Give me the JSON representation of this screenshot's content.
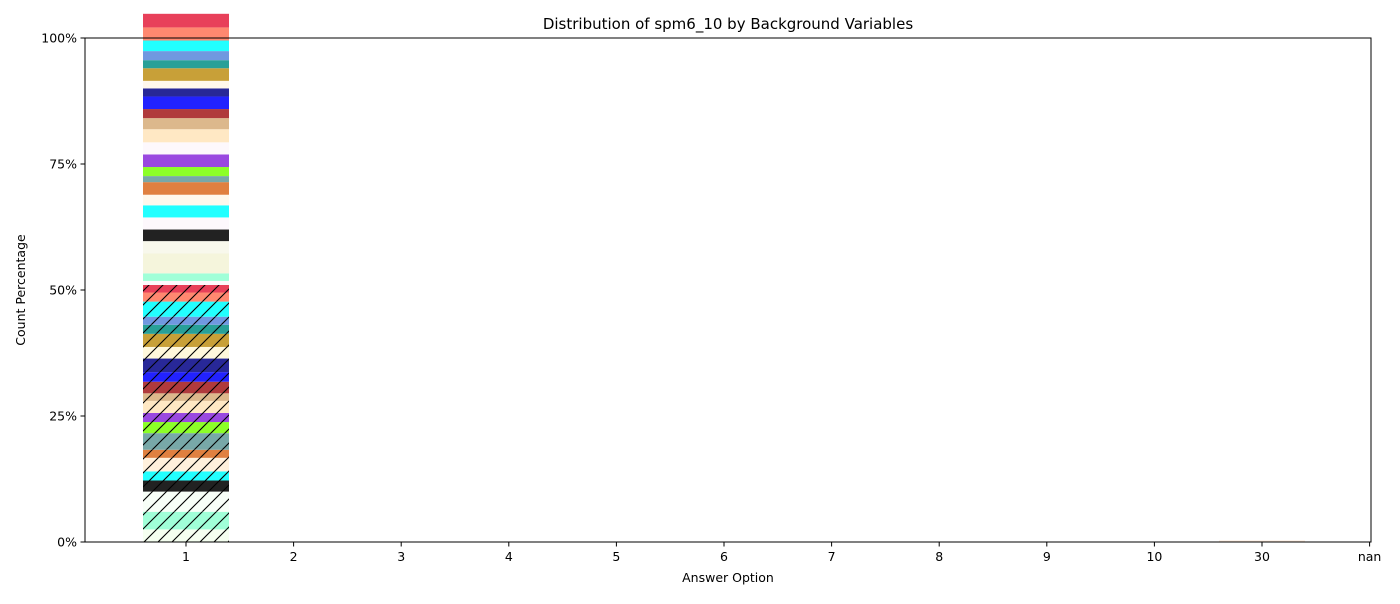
{
  "chart_data": {
    "type": "bar",
    "stacked": true,
    "title": "Distribution of spm6_10 by Background Variables",
    "xlabel": "Answer Option",
    "ylabel": "Count Percentage",
    "categories": [
      "1",
      "2",
      "3",
      "4",
      "5",
      "6",
      "7",
      "8",
      "9",
      "10",
      "30",
      "nan"
    ],
    "yticks": [
      "0%",
      "25%",
      "50%",
      "75%",
      "100%"
    ],
    "ylim": [
      0,
      100
    ],
    "grid": false,
    "legend": "none",
    "segments_at_category_1": [
      {
        "value": 2.5,
        "color": "#f5fff0",
        "hatch": true
      },
      {
        "value": 3.5,
        "color": "#a0ffd8",
        "hatch": true
      },
      {
        "value": 4.0,
        "color": "#f8fff8",
        "hatch": true
      },
      {
        "value": 2.2,
        "color": "#222222",
        "hatch": true
      },
      {
        "value": 1.8,
        "color": "#22ffff",
        "hatch": true
      },
      {
        "value": 2.7,
        "color": "#fff0dc",
        "hatch": true
      },
      {
        "value": 1.6,
        "color": "#e08040",
        "hatch": true
      },
      {
        "value": 3.3,
        "color": "#78a8a8",
        "hatch": true
      },
      {
        "value": 2.2,
        "color": "#8cff28",
        "hatch": true
      },
      {
        "value": 1.8,
        "color": "#9a48e0",
        "hatch": true
      },
      {
        "value": 2.4,
        "color": "#ffe8c4",
        "hatch": true
      },
      {
        "value": 1.5,
        "color": "#dcb88c",
        "hatch": true
      },
      {
        "value": 2.3,
        "color": "#b03a3c",
        "hatch": true
      },
      {
        "value": 1.9,
        "color": "#2222ff",
        "hatch": true
      },
      {
        "value": 2.7,
        "color": "#282898",
        "hatch": true
      },
      {
        "value": 2.3,
        "color": "#fff8dc",
        "hatch": true
      },
      {
        "value": 2.6,
        "color": "#c8a038",
        "hatch": true
      },
      {
        "value": 1.8,
        "color": "#28a098",
        "hatch": true
      },
      {
        "value": 1.6,
        "color": "#7098e0",
        "hatch": true
      },
      {
        "value": 3.0,
        "color": "#22ffff",
        "hatch": true
      },
      {
        "value": 1.8,
        "color": "#ff8870",
        "hatch": true
      },
      {
        "value": 1.5,
        "color": "#e8405a",
        "hatch": true
      },
      {
        "value": 0.8,
        "color": "#fdf8fc",
        "hatch": false
      },
      {
        "value": 1.5,
        "color": "#a0ffd8",
        "hatch": false
      },
      {
        "value": 4.0,
        "color": "#f5f5dc",
        "hatch": false
      },
      {
        "value": 2.4,
        "color": "#f8f8ec",
        "hatch": false
      },
      {
        "value": 2.3,
        "color": "#222222",
        "hatch": false
      },
      {
        "value": 2.4,
        "color": "#fdf8fc",
        "hatch": false
      },
      {
        "value": 2.4,
        "color": "#22ffff",
        "hatch": false
      },
      {
        "value": 2.1,
        "color": "#fff8ec",
        "hatch": false
      },
      {
        "value": 2.5,
        "color": "#e08040",
        "hatch": false
      },
      {
        "value": 1.2,
        "color": "#78a8a8",
        "hatch": false
      },
      {
        "value": 1.8,
        "color": "#8cff28",
        "hatch": false
      },
      {
        "value": 2.5,
        "color": "#9a48e0",
        "hatch": false
      },
      {
        "value": 2.4,
        "color": "#fdf8fc",
        "hatch": false
      },
      {
        "value": 2.6,
        "color": "#ffe8c4",
        "hatch": false
      },
      {
        "value": 2.2,
        "color": "#dcb88c",
        "hatch": false
      },
      {
        "value": 1.8,
        "color": "#b03a3c",
        "hatch": false
      },
      {
        "value": 2.5,
        "color": "#2222ff",
        "hatch": false
      },
      {
        "value": 1.6,
        "color": "#282898",
        "hatch": false
      },
      {
        "value": 1.5,
        "color": "#fff8ec",
        "hatch": false
      },
      {
        "value": 2.5,
        "color": "#c8a038",
        "hatch": false
      },
      {
        "value": 1.6,
        "color": "#28a098",
        "hatch": false
      },
      {
        "value": 1.8,
        "color": "#7098e0",
        "hatch": false
      },
      {
        "value": 2.1,
        "color": "#22ffff",
        "hatch": false
      },
      {
        "value": 2.6,
        "color": "#ff8870",
        "hatch": false
      },
      {
        "value": 2.7,
        "color": "#e8405a",
        "hatch": false
      }
    ],
    "segments_at_category_30": [
      {
        "value": 0.3,
        "color": "#fce8d8",
        "hatch": false
      }
    ]
  }
}
